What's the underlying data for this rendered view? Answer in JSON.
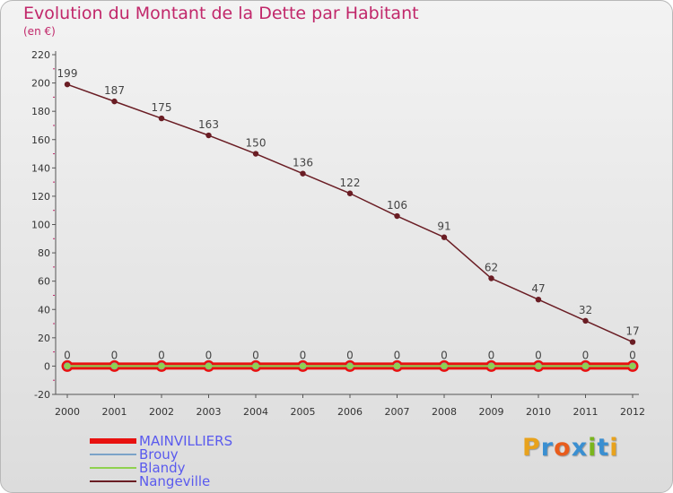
{
  "header": {
    "title": "Evolution du Montant de la Dette par Habitant",
    "unit": "(en €)"
  },
  "logo": {
    "text": "Proxiti",
    "colors": [
      "#e8a21c",
      "#3a8fd1",
      "#e85c1c",
      "#3a8fd1",
      "#7ab51d",
      "#3a8fd1",
      "#e8a21c"
    ]
  },
  "chart_data": {
    "type": "line",
    "title": "Evolution du Montant de la Dette par Habitant",
    "subtitle": "(en €)",
    "xlabel": "",
    "ylabel": "",
    "categories": [
      "2000",
      "2001",
      "2002",
      "2003",
      "2004",
      "2005",
      "2006",
      "2007",
      "2008",
      "2009",
      "2010",
      "2011",
      "2012"
    ],
    "ylim": [
      -20,
      220
    ],
    "yticks": [
      -20,
      0,
      20,
      40,
      60,
      80,
      100,
      120,
      140,
      160,
      180,
      200,
      220
    ],
    "grid": false,
    "legend_position": "bottom-left",
    "series": [
      {
        "name": "MAINVILLIERS",
        "color": "#e8110f",
        "values": [
          0,
          0,
          0,
          0,
          0,
          0,
          0,
          0,
          0,
          0,
          0,
          0,
          0
        ],
        "labels": false
      },
      {
        "name": "Brouy",
        "color": "#7ba3c8",
        "values": [
          0,
          0,
          0,
          0,
          0,
          0,
          0,
          0,
          0,
          0,
          0,
          0,
          0
        ],
        "labels": false
      },
      {
        "name": "Blandy",
        "color": "#8fd14f",
        "values": [
          0,
          0,
          0,
          0,
          0,
          0,
          0,
          0,
          0,
          0,
          0,
          0,
          0
        ],
        "labels": true
      },
      {
        "name": "Nangeville",
        "color": "#6a1d24",
        "values": [
          199,
          187,
          175,
          163,
          150,
          136,
          122,
          106,
          91,
          62,
          47,
          32,
          17
        ],
        "labels": true
      }
    ]
  }
}
